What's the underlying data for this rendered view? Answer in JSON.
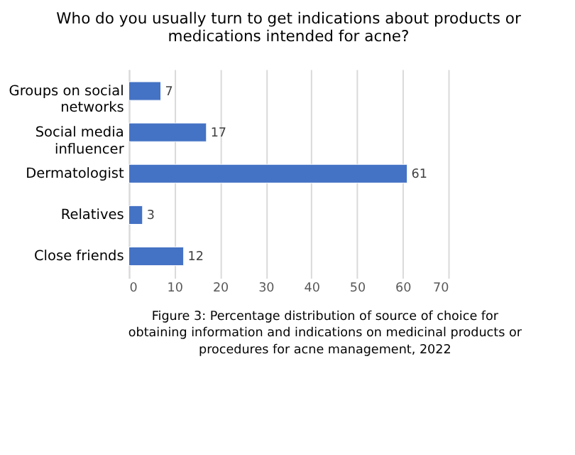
{
  "chart_data": {
    "type": "bar",
    "orientation": "horizontal",
    "title": "Who do you usually turn to get indications about products or medications intended for acne?",
    "categories": [
      "Groups on social networks",
      "Social media influencer",
      "Dermatologist",
      "Relatives",
      "Close friends"
    ],
    "values": [
      7,
      17,
      61,
      3,
      12
    ],
    "color": "#4472c4",
    "xlim": [
      0,
      70
    ],
    "xticks": [
      0,
      10,
      20,
      30,
      40,
      50,
      60,
      70
    ],
    "grid": "x",
    "data_labels": true,
    "annotations": [
      "Figure 3: Percentage distribution of source of choice for obtaining information and indications on medicinal products or procedures for acne management, 2022"
    ]
  }
}
